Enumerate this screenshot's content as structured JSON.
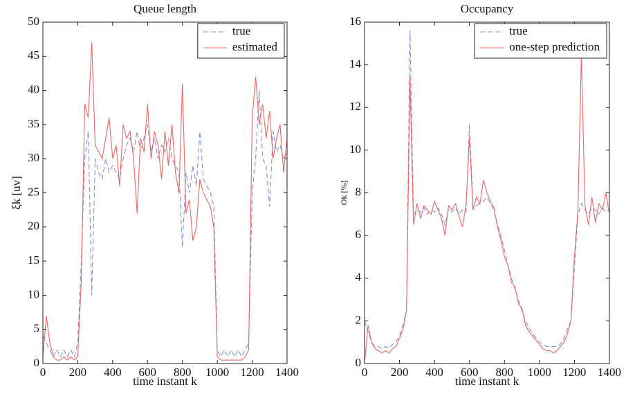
{
  "chart_data": [
    {
      "type": "line",
      "title": "Queue length",
      "xlabel": "time instant k",
      "ylabel": "ξk [uv]",
      "x": [
        0,
        20,
        40,
        60,
        80,
        100,
        120,
        140,
        160,
        180,
        200,
        220,
        240,
        260,
        280,
        300,
        320,
        340,
        360,
        380,
        400,
        420,
        440,
        460,
        480,
        500,
        520,
        540,
        560,
        580,
        600,
        620,
        640,
        660,
        680,
        700,
        720,
        740,
        760,
        780,
        800,
        820,
        840,
        860,
        880,
        900,
        920,
        940,
        960,
        980,
        1000,
        1020,
        1040,
        1060,
        1080,
        1100,
        1120,
        1140,
        1160,
        1180,
        1200,
        1220,
        1240,
        1260,
        1280,
        1300,
        1320,
        1340,
        1360,
        1380,
        1400
      ],
      "xlim": [
        0,
        1400
      ],
      "xticks": [
        0,
        200,
        400,
        600,
        800,
        1000,
        1200,
        1400
      ],
      "ylim": [
        0,
        50
      ],
      "yticks": [
        0,
        5,
        10,
        15,
        20,
        25,
        30,
        35,
        40,
        45,
        50
      ],
      "legend": "upper right",
      "series": [
        {
          "name": "true",
          "color": "#7f8fd8",
          "style": "dashed",
          "values": [
            4,
            3,
            2,
            1,
            2,
            1,
            2,
            1,
            2,
            1,
            3,
            15,
            30,
            34,
            10,
            30,
            28,
            27,
            30,
            28,
            29,
            28,
            27,
            30,
            32,
            33,
            31,
            34,
            31,
            33,
            35,
            31,
            33,
            30,
            32,
            31,
            33,
            30,
            29,
            28,
            17,
            28,
            25,
            29,
            26,
            34,
            27,
            26,
            25,
            23,
            2,
            1,
            2,
            1,
            2,
            1,
            2,
            1,
            2,
            3,
            25,
            30,
            40,
            30,
            29,
            23,
            34,
            31,
            32,
            30,
            31
          ]
        },
        {
          "name": "estimated",
          "color": "#f06464",
          "style": "solid",
          "values": [
            1,
            7,
            3,
            1,
            0.5,
            0.5,
            1,
            0.5,
            1,
            0.5,
            1,
            12,
            38,
            36,
            47,
            32,
            31,
            30,
            33,
            36,
            30,
            32,
            26,
            35,
            33,
            34,
            30,
            22,
            33,
            31,
            38,
            30,
            34,
            32,
            27,
            34,
            29,
            35,
            28,
            25,
            41,
            22,
            24,
            18,
            20,
            27,
            25,
            24,
            23,
            20,
            1,
            0.5,
            0.5,
            0.5,
            0.5,
            0.5,
            0.5,
            0.5,
            1,
            2,
            36,
            42,
            35,
            38,
            33,
            37,
            30,
            33,
            35,
            28,
            33
          ]
        }
      ]
    },
    {
      "type": "line",
      "title": "Occupancy",
      "xlabel": "time instant k",
      "ylabel": "Ok [%]",
      "x": [
        0,
        20,
        40,
        60,
        80,
        100,
        120,
        140,
        160,
        180,
        200,
        220,
        240,
        260,
        280,
        300,
        320,
        340,
        360,
        380,
        400,
        420,
        440,
        460,
        480,
        500,
        520,
        540,
        560,
        580,
        600,
        620,
        640,
        660,
        680,
        700,
        720,
        740,
        760,
        780,
        800,
        820,
        840,
        860,
        880,
        900,
        920,
        940,
        960,
        980,
        1000,
        1020,
        1040,
        1060,
        1080,
        1100,
        1120,
        1140,
        1160,
        1180,
        1200,
        1220,
        1240,
        1260,
        1280,
        1300,
        1320,
        1340,
        1360,
        1380,
        1400
      ],
      "xlim": [
        0,
        1400
      ],
      "xticks": [
        0,
        200,
        400,
        600,
        800,
        1000,
        1200,
        1400
      ],
      "ylim": [
        0,
        16
      ],
      "yticks": [
        0,
        2,
        4,
        6,
        8,
        10,
        12,
        14,
        16
      ],
      "legend": "upper right",
      "series": [
        {
          "name": "true",
          "color": "#7f8fd8",
          "style": "dashed",
          "values": [
            2,
            1.5,
            1,
            0.8,
            0.8,
            0.7,
            0.8,
            0.7,
            0.9,
            1,
            1.3,
            1.8,
            2.5,
            15.6,
            7,
            7.2,
            7.1,
            7.3,
            7,
            7.2,
            7.1,
            7.3,
            7,
            6.5,
            7.2,
            7.1,
            7.3,
            7,
            7.2,
            7.1,
            11.2,
            7.3,
            7.4,
            7.5,
            7.6,
            7.8,
            7.5,
            7.2,
            6.5,
            6,
            5.3,
            4.6,
            4,
            3.5,
            3,
            2.5,
            2,
            1.7,
            1.4,
            1.2,
            1,
            0.9,
            0.8,
            0.8,
            0.8,
            0.8,
            0.9,
            1.2,
            1.6,
            2,
            4.5,
            7,
            7.5,
            7.2,
            7,
            7.3,
            7.2,
            7,
            7.3,
            7.1,
            7.2
          ]
        },
        {
          "name": "one-step prediction",
          "color": "#f06464",
          "style": "solid",
          "values": [
            0,
            1.8,
            1,
            0.7,
            0.6,
            0.5,
            0.6,
            0.5,
            0.7,
            0.8,
            1.2,
            1.6,
            2.5,
            13.4,
            6.5,
            7.5,
            6.8,
            7.4,
            7.2,
            7,
            7.6,
            7.2,
            6.8,
            6,
            7.4,
            7.2,
            7.5,
            6.9,
            6.4,
            7.4,
            10.6,
            7.2,
            7.8,
            7.5,
            8.6,
            8,
            7.6,
            7.3,
            6.4,
            5.8,
            5,
            4.6,
            3.8,
            3.6,
            2.8,
            2.6,
            1.8,
            1.5,
            1.3,
            1.1,
            0.9,
            0.7,
            0.6,
            0.6,
            0.5,
            0.6,
            0.8,
            1,
            1.4,
            2,
            5,
            7.2,
            14.5,
            7.4,
            6.5,
            7.8,
            6.6,
            7.5,
            7.2,
            8,
            7
          ]
        }
      ]
    }
  ]
}
